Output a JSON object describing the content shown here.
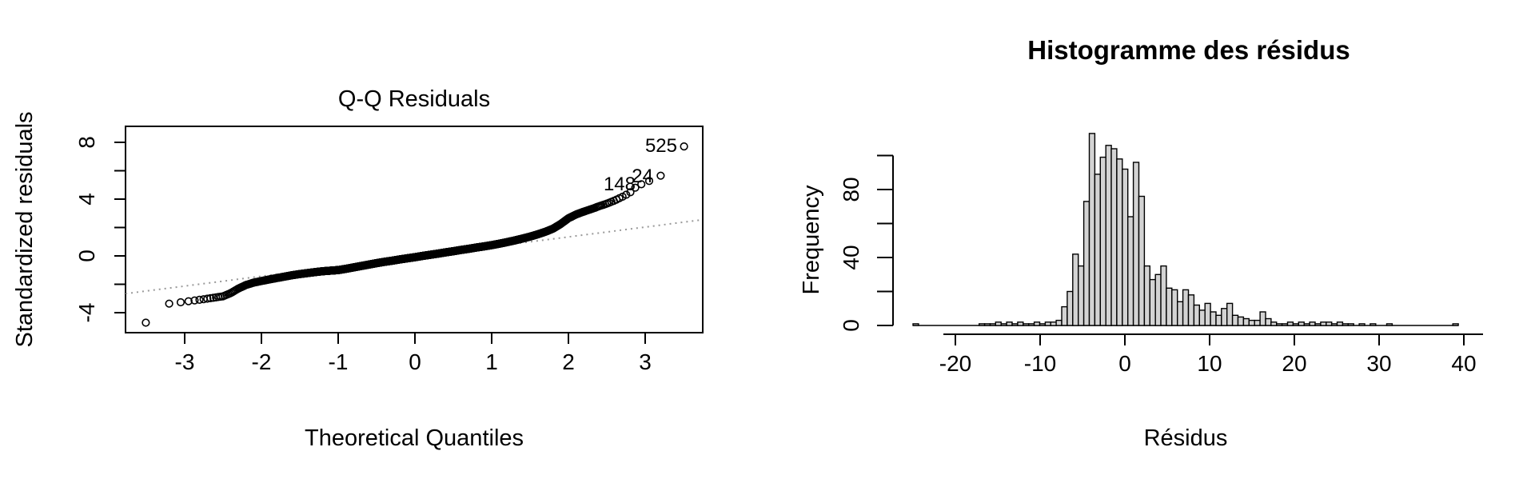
{
  "window": {
    "background": "#ffffff",
    "foreground": "#000000"
  },
  "chart_data": [
    {
      "type": "scatter",
      "name": "qq-residuals-plot",
      "title": "Q-Q Residuals",
      "xlabel": "Theoretical Quantiles",
      "ylabel": "Standardized residuals",
      "xlim": [
        -3.77,
        3.75
      ],
      "ylim": [
        -5.4,
        9.1
      ],
      "x_ticks": [
        -3,
        -2,
        -1,
        0,
        1,
        2,
        3
      ],
      "y_ticks": [
        -4,
        -2,
        0,
        2,
        4,
        6,
        8
      ],
      "y_tick_labels": [
        -4,
        0,
        4,
        8
      ],
      "grid": false,
      "marker": {
        "shape": "open-circle",
        "radius": 4.3,
        "stroke": "#000000",
        "fill": "none"
      },
      "n_points": 2200,
      "curve_anchors": [
        [
          -3.51,
          -4.73
        ],
        [
          -3.3,
          -3.45
        ],
        [
          -3.2,
          -3.36
        ],
        [
          -3.1,
          -3.3
        ],
        [
          -3.0,
          -3.23
        ],
        [
          -2.9,
          -3.16
        ],
        [
          -2.8,
          -3.09
        ],
        [
          -2.7,
          -3.01
        ],
        [
          -2.6,
          -2.93
        ],
        [
          -2.5,
          -2.85
        ],
        [
          -2.4,
          -2.62
        ],
        [
          -2.3,
          -2.3
        ],
        [
          -2.2,
          -2.05
        ],
        [
          -2.1,
          -1.88
        ],
        [
          -2.0,
          -1.77
        ],
        [
          -1.9,
          -1.66
        ],
        [
          -1.8,
          -1.56
        ],
        [
          -1.7,
          -1.46
        ],
        [
          -1.6,
          -1.36
        ],
        [
          -1.5,
          -1.28
        ],
        [
          -1.4,
          -1.21
        ],
        [
          -1.3,
          -1.14
        ],
        [
          -1.2,
          -1.08
        ],
        [
          -1.1,
          -1.04
        ],
        [
          -1.0,
          -1.0
        ],
        [
          -0.9,
          -0.91
        ],
        [
          -0.8,
          -0.81
        ],
        [
          -0.7,
          -0.71
        ],
        [
          -0.6,
          -0.61
        ],
        [
          -0.5,
          -0.51
        ],
        [
          -0.4,
          -0.42
        ],
        [
          -0.3,
          -0.34
        ],
        [
          -0.2,
          -0.25
        ],
        [
          -0.1,
          -0.17
        ],
        [
          0.0,
          -0.09
        ],
        [
          0.1,
          0.0
        ],
        [
          0.2,
          0.08
        ],
        [
          0.3,
          0.16
        ],
        [
          0.4,
          0.25
        ],
        [
          0.5,
          0.33
        ],
        [
          0.6,
          0.42
        ],
        [
          0.7,
          0.5
        ],
        [
          0.8,
          0.59
        ],
        [
          0.9,
          0.67
        ],
        [
          1.0,
          0.76
        ],
        [
          1.1,
          0.86
        ],
        [
          1.2,
          0.97
        ],
        [
          1.3,
          1.09
        ],
        [
          1.4,
          1.22
        ],
        [
          1.5,
          1.36
        ],
        [
          1.6,
          1.52
        ],
        [
          1.7,
          1.7
        ],
        [
          1.8,
          1.92
        ],
        [
          1.9,
          2.25
        ],
        [
          2.0,
          2.65
        ],
        [
          2.1,
          2.92
        ],
        [
          2.2,
          3.12
        ],
        [
          2.3,
          3.3
        ],
        [
          2.4,
          3.5
        ],
        [
          2.5,
          3.68
        ],
        [
          2.6,
          3.9
        ],
        [
          2.7,
          4.15
        ],
        [
          2.8,
          4.45
        ],
        [
          2.9,
          4.95
        ],
        [
          3.0,
          5.15
        ],
        [
          3.1,
          5.4
        ],
        [
          3.2,
          5.65
        ],
        [
          3.3,
          5.7
        ],
        [
          3.51,
          7.75
        ]
      ],
      "outliers": [
        {
          "label": "525",
          "q": 3.51,
          "s": 7.75
        },
        {
          "label": "24",
          "q": 3.2,
          "s": 5.65
        },
        {
          "label": "148",
          "q": 2.97,
          "s": 5.05
        }
      ],
      "ref_line": {
        "style": "dotted",
        "color": "#999999",
        "from": [
          -3.77,
          -2.66
        ],
        "to": [
          3.75,
          2.55
        ]
      }
    },
    {
      "type": "bar",
      "name": "residuals-histogram",
      "title": "Histogramme des résidus",
      "xlabel": "Résidus",
      "ylabel": "Frequency",
      "xlim": [
        -25,
        40
      ],
      "ylim": [
        0,
        100
      ],
      "x_ticks": [
        -20,
        -10,
        0,
        10,
        20,
        30,
        40
      ],
      "y_ticks": [
        0,
        20,
        40,
        60,
        80,
        100
      ],
      "y_tick_labels": [
        0,
        40,
        80
      ],
      "grid": false,
      "bar_fill": "#d3d3d3",
      "bar_stroke": "#000000",
      "bin_start": -25,
      "bin_width": 0.65,
      "frequencies": [
        1,
        0,
        0,
        0,
        0,
        0,
        0,
        0,
        0,
        0,
        0,
        0,
        1,
        1,
        1,
        2,
        1,
        2,
        1,
        2,
        1,
        1,
        2,
        1,
        2,
        2,
        3,
        11,
        20,
        42,
        35,
        73,
        113,
        89,
        99,
        106,
        104,
        98,
        92,
        64,
        96,
        76,
        35,
        27,
        30,
        35,
        22,
        21,
        14,
        21,
        18,
        12,
        9,
        13,
        8,
        6,
        10,
        13,
        6,
        5,
        4,
        3,
        3,
        8,
        4,
        2,
        1,
        1,
        2,
        1,
        2,
        1,
        2,
        1,
        2,
        2,
        1,
        2,
        1,
        1,
        0,
        1,
        0,
        1,
        0,
        0,
        1,
        0,
        0,
        0,
        0,
        0,
        0,
        0,
        0,
        0,
        0,
        0,
        1
      ]
    }
  ]
}
